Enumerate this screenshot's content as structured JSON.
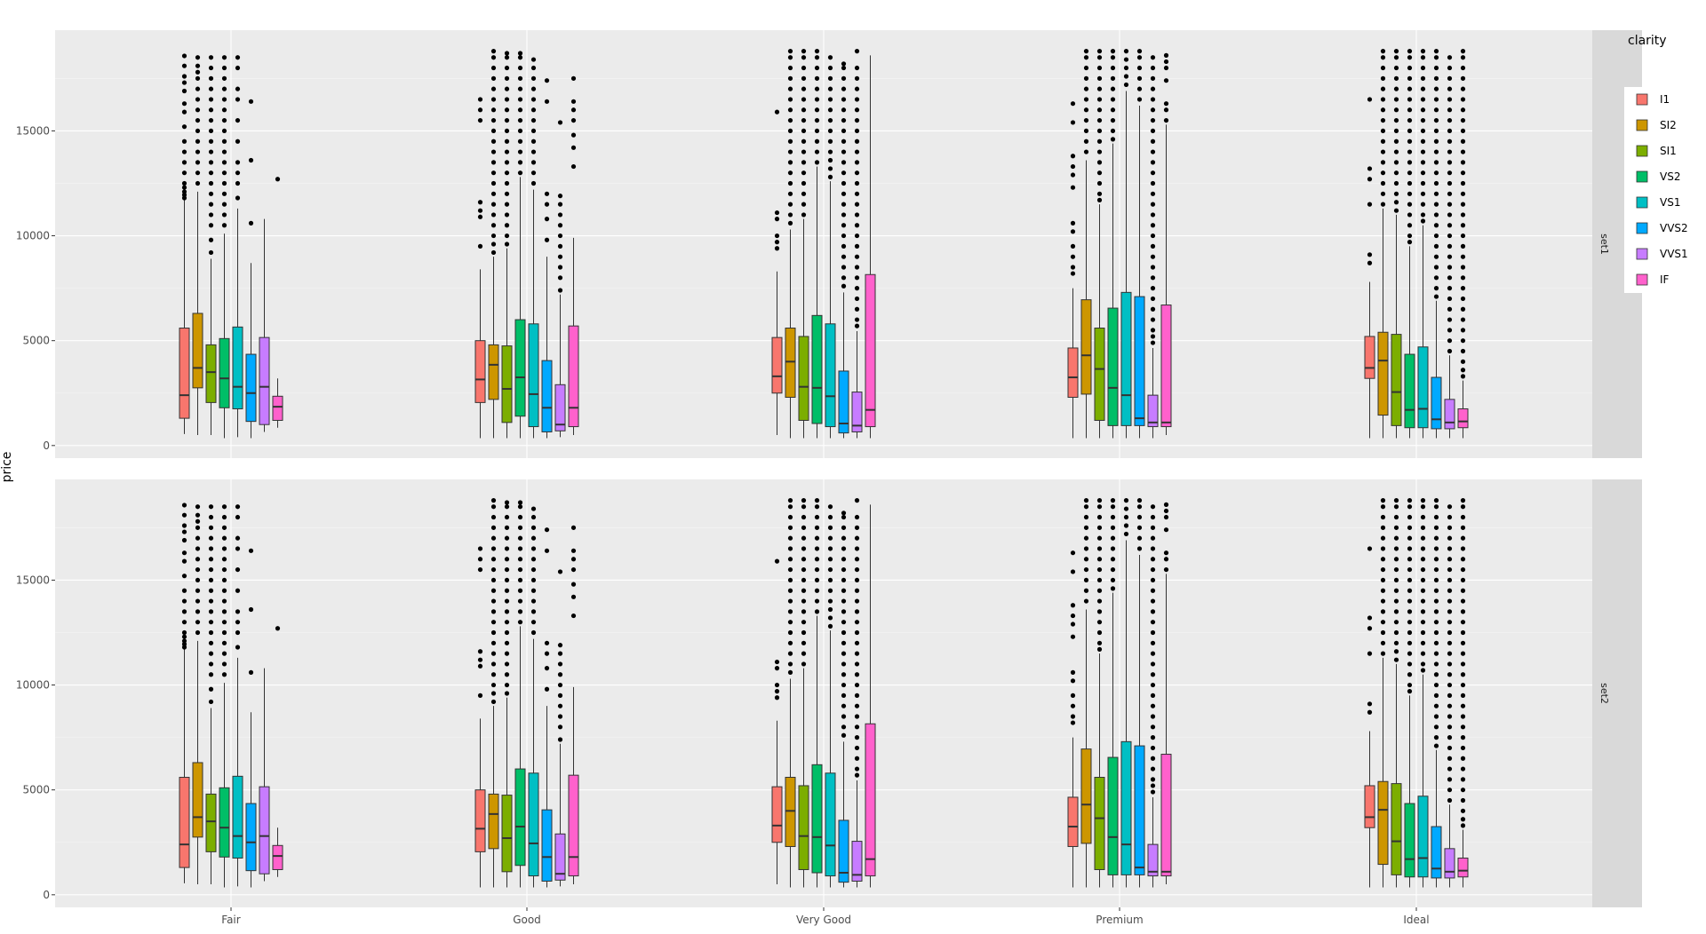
{
  "chart_data": {
    "type": "box",
    "ylabel": "price",
    "xlabel": "",
    "ylim": [
      -600,
      19800
    ],
    "y_ticks": [
      0,
      5000,
      10000,
      15000
    ],
    "y_tick_labels": [
      "0",
      "5000",
      "10000",
      "15000"
    ],
    "categories": [
      "Fair",
      "Good",
      "Very Good",
      "Premium",
      "Ideal"
    ],
    "legend": {
      "title": "clarity",
      "placement": "right",
      "entries": [
        {
          "name": "I1",
          "color": "#F8766D"
        },
        {
          "name": "SI2",
          "color": "#CD9600"
        },
        {
          "name": "SI1",
          "color": "#7CAE00"
        },
        {
          "name": "VS2",
          "color": "#00BE67"
        },
        {
          "name": "VS1",
          "color": "#00BFC4"
        },
        {
          "name": "VVS2",
          "color": "#00A9FF"
        },
        {
          "name": "VVS1",
          "color": "#C77CFF"
        },
        {
          "name": "IF",
          "color": "#FF61CC"
        }
      ]
    },
    "panels": [
      "set1",
      "set2"
    ],
    "boxes": {
      "Fair": [
        {
          "q1": 1300,
          "median": 2400,
          "q3": 5600,
          "lo": 550,
          "hi": 11700,
          "outliers": [
            11800,
            11950,
            12100,
            12300,
            12500,
            13000,
            13500,
            14000,
            14500,
            15200,
            15900,
            16300,
            16900,
            17300,
            17600,
            18100,
            18574
          ]
        },
        {
          "q1": 2750,
          "median": 3700,
          "q3": 6300,
          "lo": 500,
          "hi": 12100,
          "outliers": [
            12500,
            13000,
            13500,
            14000,
            14500,
            15000,
            15500,
            16000,
            16500,
            17000,
            17500,
            17800,
            18100,
            18500
          ]
        },
        {
          "q1": 2050,
          "median": 3500,
          "q3": 4800,
          "lo": 500,
          "hi": 8900,
          "outliers": [
            9200,
            9800,
            10500,
            11000,
            11500,
            12000,
            12500,
            13000,
            13500,
            14000,
            14500,
            15000,
            15500,
            16000,
            16500,
            17000,
            17500,
            18000,
            18500
          ]
        },
        {
          "q1": 1800,
          "median": 3200,
          "q3": 5100,
          "lo": 350,
          "hi": 10100,
          "outliers": [
            10500,
            11000,
            11500,
            12000,
            12500,
            13000,
            13500,
            14000,
            14500,
            15000,
            15500,
            16000,
            16500,
            17000,
            17500,
            18000,
            18500
          ]
        },
        {
          "q1": 1750,
          "median": 2800,
          "q3": 5650,
          "lo": 400,
          "hi": 11300,
          "outliers": [
            11800,
            12500,
            13000,
            13500,
            14500,
            15500,
            16500,
            17000,
            18000,
            18500
          ]
        },
        {
          "q1": 1150,
          "median": 2500,
          "q3": 4350,
          "lo": 350,
          "hi": 8700,
          "outliers": [
            10600,
            13600,
            16400
          ]
        },
        {
          "q1": 1000,
          "median": 2800,
          "q3": 5150,
          "lo": 650,
          "hi": 10800,
          "outliers": []
        },
        {
          "q1": 1200,
          "median": 1850,
          "q3": 2350,
          "lo": 850,
          "hi": 3200,
          "outliers": [
            12700
          ]
        }
      ],
      "Good": [
        {
          "q1": 2050,
          "median": 3150,
          "q3": 5000,
          "lo": 350,
          "hi": 8400,
          "outliers": [
            9500,
            10900,
            11200,
            11600,
            15500,
            16000,
            16500
          ]
        },
        {
          "q1": 2200,
          "median": 3850,
          "q3": 4800,
          "lo": 350,
          "hi": 9000,
          "outliers": [
            9200,
            9600,
            10000,
            10500,
            11000,
            11500,
            12000,
            12500,
            13000,
            13500,
            14000,
            14500,
            15000,
            15500,
            16000,
            16500,
            17000,
            17500,
            18000,
            18500,
            18800
          ]
        },
        {
          "q1": 1100,
          "median": 2700,
          "q3": 4750,
          "lo": 350,
          "hi": 9400,
          "outliers": [
            9600,
            10000,
            10500,
            11000,
            11500,
            12000,
            12500,
            13000,
            13500,
            14000,
            14500,
            15000,
            15500,
            16000,
            16500,
            17000,
            17500,
            18000,
            18500,
            18700
          ]
        },
        {
          "q1": 1400,
          "median": 3250,
          "q3": 6000,
          "lo": 350,
          "hi": 12800,
          "outliers": [
            13000,
            13500,
            14000,
            14500,
            15000,
            15500,
            16000,
            16500,
            17000,
            17500,
            18000,
            18500,
            18700
          ]
        },
        {
          "q1": 900,
          "median": 2450,
          "q3": 5800,
          "lo": 350,
          "hi": 12200,
          "outliers": [
            12500,
            13000,
            13500,
            14000,
            14500,
            15000,
            15500,
            16000,
            16500,
            17000,
            17500,
            18000,
            18400
          ]
        },
        {
          "q1": 650,
          "median": 1800,
          "q3": 4050,
          "lo": 350,
          "hi": 9000,
          "outliers": [
            9800,
            10800,
            11500,
            12000,
            16400,
            17400
          ]
        },
        {
          "q1": 700,
          "median": 1000,
          "q3": 2900,
          "lo": 400,
          "hi": 7200,
          "outliers": [
            7400,
            8000,
            8500,
            9000,
            9500,
            10000,
            10500,
            11000,
            11500,
            11900,
            15400
          ]
        },
        {
          "q1": 900,
          "median": 1800,
          "q3": 5700,
          "lo": 500,
          "hi": 9900,
          "outliers": [
            13300,
            14200,
            14800,
            15500,
            16000,
            16400,
            17500
          ]
        }
      ],
      "Very Good": [
        {
          "q1": 2500,
          "median": 3300,
          "q3": 5150,
          "lo": 500,
          "hi": 8300,
          "outliers": [
            9400,
            9700,
            10000,
            10800,
            11100,
            15900
          ]
        },
        {
          "q1": 2300,
          "median": 4000,
          "q3": 5600,
          "lo": 350,
          "hi": 10300,
          "outliers": [
            10600,
            11000,
            11500,
            12000,
            12500,
            13000,
            13500,
            14000,
            14500,
            15000,
            15500,
            16000,
            16500,
            17000,
            17500,
            18000,
            18500,
            18800
          ]
        },
        {
          "q1": 1200,
          "median": 2800,
          "q3": 5200,
          "lo": 350,
          "hi": 10800,
          "outliers": [
            11000,
            11500,
            12000,
            12500,
            13000,
            13500,
            14000,
            14500,
            15000,
            15500,
            16000,
            16500,
            17000,
            17500,
            18000,
            18500,
            18800
          ]
        },
        {
          "q1": 1050,
          "median": 2750,
          "q3": 6200,
          "lo": 350,
          "hi": 13300,
          "outliers": [
            13500,
            14000,
            14500,
            15000,
            15500,
            16000,
            16500,
            17000,
            17500,
            18000,
            18500,
            18800
          ]
        },
        {
          "q1": 900,
          "median": 2350,
          "q3": 5800,
          "lo": 350,
          "hi": 12600,
          "outliers": [
            12800,
            13200,
            13600,
            14000,
            14500,
            15000,
            15500,
            16000,
            16500,
            17000,
            17500,
            18000,
            18500
          ]
        },
        {
          "q1": 600,
          "median": 1050,
          "q3": 3550,
          "lo": 350,
          "hi": 7300,
          "outliers": [
            7600,
            8000,
            8500,
            9000,
            9500,
            10000,
            10500,
            11000,
            11500,
            12000,
            12500,
            13000,
            13500,
            14000,
            14500,
            15000,
            15500,
            16000,
            16500,
            17000,
            17500,
            18000,
            18200
          ]
        },
        {
          "q1": 650,
          "median": 950,
          "q3": 2550,
          "lo": 350,
          "hi": 5450,
          "outliers": [
            5700,
            6000,
            6500,
            7000,
            7500,
            8000,
            8500,
            9000,
            9500,
            10000,
            10500,
            11000,
            11500,
            12000,
            12500,
            13000,
            13500,
            14000,
            14500,
            15000,
            15500,
            16000,
            16500,
            17000,
            17500,
            18000,
            18800
          ]
        },
        {
          "q1": 900,
          "median": 1700,
          "q3": 8150,
          "lo": 350,
          "hi": 18600,
          "outliers": []
        }
      ],
      "Premium": [
        {
          "q1": 2300,
          "median": 3250,
          "q3": 4650,
          "lo": 350,
          "hi": 7500,
          "outliers": [
            8200,
            8500,
            9000,
            9500,
            10200,
            10600,
            12300,
            12900,
            13300,
            13800,
            15400,
            16300
          ]
        },
        {
          "q1": 2450,
          "median": 4300,
          "q3": 6950,
          "lo": 350,
          "hi": 13600,
          "outliers": [
            14000,
            14500,
            15000,
            15500,
            16000,
            16500,
            17000,
            17500,
            18000,
            18500,
            18800
          ]
        },
        {
          "q1": 1200,
          "median": 3650,
          "q3": 5600,
          "lo": 350,
          "hi": 11500,
          "outliers": [
            11700,
            12000,
            12500,
            13000,
            13500,
            14000,
            14500,
            15000,
            15500,
            16000,
            16500,
            17000,
            17500,
            18000,
            18500,
            18800
          ]
        },
        {
          "q1": 950,
          "median": 2750,
          "q3": 6550,
          "lo": 350,
          "hi": 14400,
          "outliers": [
            14600,
            15000,
            15500,
            16000,
            16500,
            17000,
            17500,
            18000,
            18500,
            18800
          ]
        },
        {
          "q1": 950,
          "median": 2400,
          "q3": 7300,
          "lo": 350,
          "hi": 16900,
          "outliers": [
            17200,
            17600,
            18000,
            18400,
            18800
          ]
        },
        {
          "q1": 950,
          "median": 1300,
          "q3": 7100,
          "lo": 350,
          "hi": 16200,
          "outliers": [
            16500,
            17000,
            17500,
            18000,
            18500,
            18800
          ]
        },
        {
          "q1": 900,
          "median": 1100,
          "q3": 2400,
          "lo": 350,
          "hi": 4650,
          "outliers": [
            4900,
            5200,
            5500,
            6000,
            6500,
            7000,
            7500,
            8000,
            8500,
            9000,
            9500,
            10000,
            10500,
            11000,
            11500,
            12000,
            12500,
            13000,
            13500,
            14000,
            14500,
            15000,
            15500,
            16000,
            16500,
            17000,
            17500,
            18000,
            18500
          ]
        },
        {
          "q1": 900,
          "median": 1100,
          "q3": 6700,
          "lo": 500,
          "hi": 15300,
          "outliers": [
            15500,
            16000,
            16300,
            17400,
            18000,
            18300,
            18600
          ]
        }
      ],
      "Ideal": [
        {
          "q1": 3200,
          "median": 3700,
          "q3": 5200,
          "lo": 350,
          "hi": 7800,
          "outliers": [
            8700,
            9100,
            11500,
            12700,
            13200,
            16500
          ]
        },
        {
          "q1": 1450,
          "median": 4050,
          "q3": 5400,
          "lo": 350,
          "hi": 11300,
          "outliers": [
            11500,
            12000,
            12500,
            13000,
            13500,
            14000,
            14500,
            15000,
            15500,
            16000,
            16500,
            17000,
            17500,
            18000,
            18500,
            18800
          ]
        },
        {
          "q1": 950,
          "median": 2550,
          "q3": 5300,
          "lo": 350,
          "hi": 11000,
          "outliers": [
            11200,
            11600,
            12000,
            12500,
            13000,
            13500,
            14000,
            14500,
            15000,
            15500,
            16000,
            16500,
            17000,
            17500,
            18000,
            18500,
            18800
          ]
        },
        {
          "q1": 850,
          "median": 1700,
          "q3": 4350,
          "lo": 350,
          "hi": 9500,
          "outliers": [
            9700,
            10000,
            10500,
            11000,
            11500,
            12000,
            12500,
            13000,
            13500,
            14000,
            14500,
            15000,
            15500,
            16000,
            16500,
            17000,
            17500,
            18000,
            18500,
            18800
          ]
        },
        {
          "q1": 850,
          "median": 1750,
          "q3": 4700,
          "lo": 350,
          "hi": 10500,
          "outliers": [
            10700,
            11000,
            11500,
            12000,
            12500,
            13000,
            13500,
            14000,
            14500,
            15000,
            15500,
            16000,
            16500,
            17000,
            17500,
            18000,
            18500,
            18800
          ]
        },
        {
          "q1": 800,
          "median": 1250,
          "q3": 3250,
          "lo": 350,
          "hi": 6900,
          "outliers": [
            7100,
            7500,
            8000,
            8500,
            9000,
            9500,
            10000,
            10500,
            11000,
            11500,
            12000,
            12500,
            13000,
            13500,
            14000,
            14500,
            15000,
            15500,
            16000,
            16500,
            17000,
            17500,
            18000,
            18500,
            18800
          ]
        },
        {
          "q1": 800,
          "median": 1100,
          "q3": 2200,
          "lo": 350,
          "hi": 4300,
          "outliers": [
            4500,
            5000,
            5500,
            6000,
            6500,
            7000,
            7500,
            8000,
            8500,
            9000,
            9500,
            10000,
            10500,
            11000,
            11500,
            12000,
            12500,
            13000,
            13500,
            14000,
            14500,
            15000,
            15500,
            16000,
            16500,
            17000,
            17500,
            18000,
            18500
          ]
        },
        {
          "q1": 850,
          "median": 1150,
          "q3": 1750,
          "lo": 350,
          "hi": 3100,
          "outliers": [
            3300,
            3600,
            4000,
            4500,
            5000,
            5500,
            6000,
            6500,
            7000,
            7500,
            8000,
            8500,
            9000,
            9500,
            10000,
            10500,
            11000,
            11500,
            12000,
            12500,
            13000,
            13500,
            14000,
            14500,
            15000,
            15500,
            16000,
            16500,
            17000,
            17500,
            18000,
            18500,
            18800
          ]
        }
      ]
    }
  }
}
